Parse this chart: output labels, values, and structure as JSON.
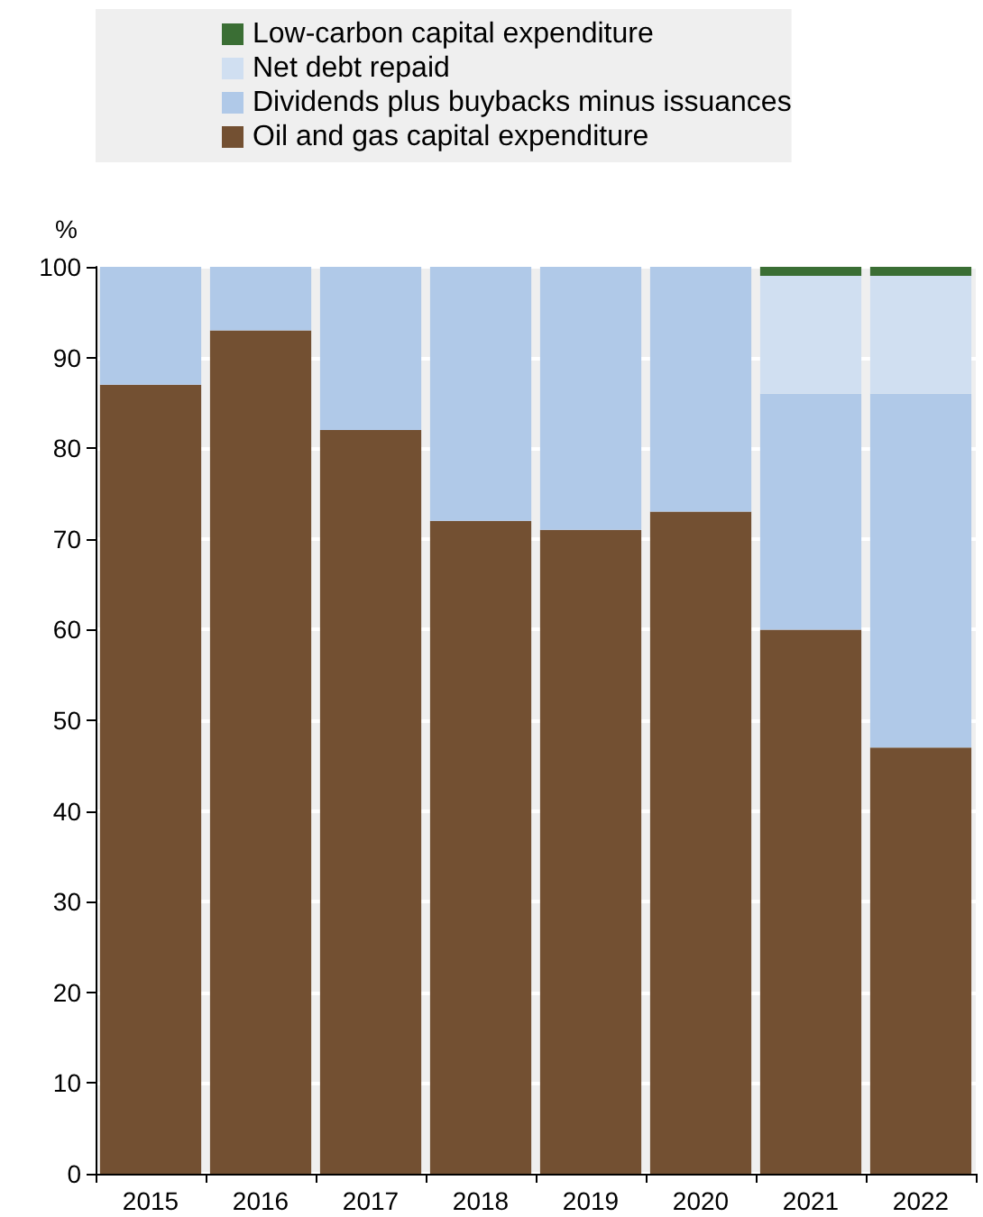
{
  "chart_data": {
    "type": "bar",
    "stacked": true,
    "ylabel": "%",
    "categories": [
      "2015",
      "2016",
      "2017",
      "2018",
      "2019",
      "2020",
      "2021",
      "2022"
    ],
    "series": [
      {
        "name": "Oil and gas capital expenditure",
        "color": "#735032",
        "values": [
          87,
          93,
          82,
          72,
          71,
          73,
          60,
          47
        ]
      },
      {
        "name": "Dividends plus buybacks minus issuances",
        "color": "#b0c9e8",
        "values": [
          13,
          7,
          18,
          28,
          29,
          27,
          26,
          39
        ]
      },
      {
        "name": "Net debt repaid",
        "color": "#d0dff1",
        "values": [
          null,
          null,
          null,
          null,
          null,
          null,
          13,
          13
        ]
      },
      {
        "name": "Low-carbon capital expenditure",
        "color": "#3a6e34",
        "values": [
          null,
          null,
          null,
          null,
          null,
          null,
          1,
          1
        ]
      }
    ],
    "ylim": [
      0,
      100
    ],
    "yticks": [
      0,
      10,
      20,
      30,
      40,
      50,
      60,
      70,
      80,
      90,
      100
    ],
    "grid": "y",
    "legend": "top"
  }
}
